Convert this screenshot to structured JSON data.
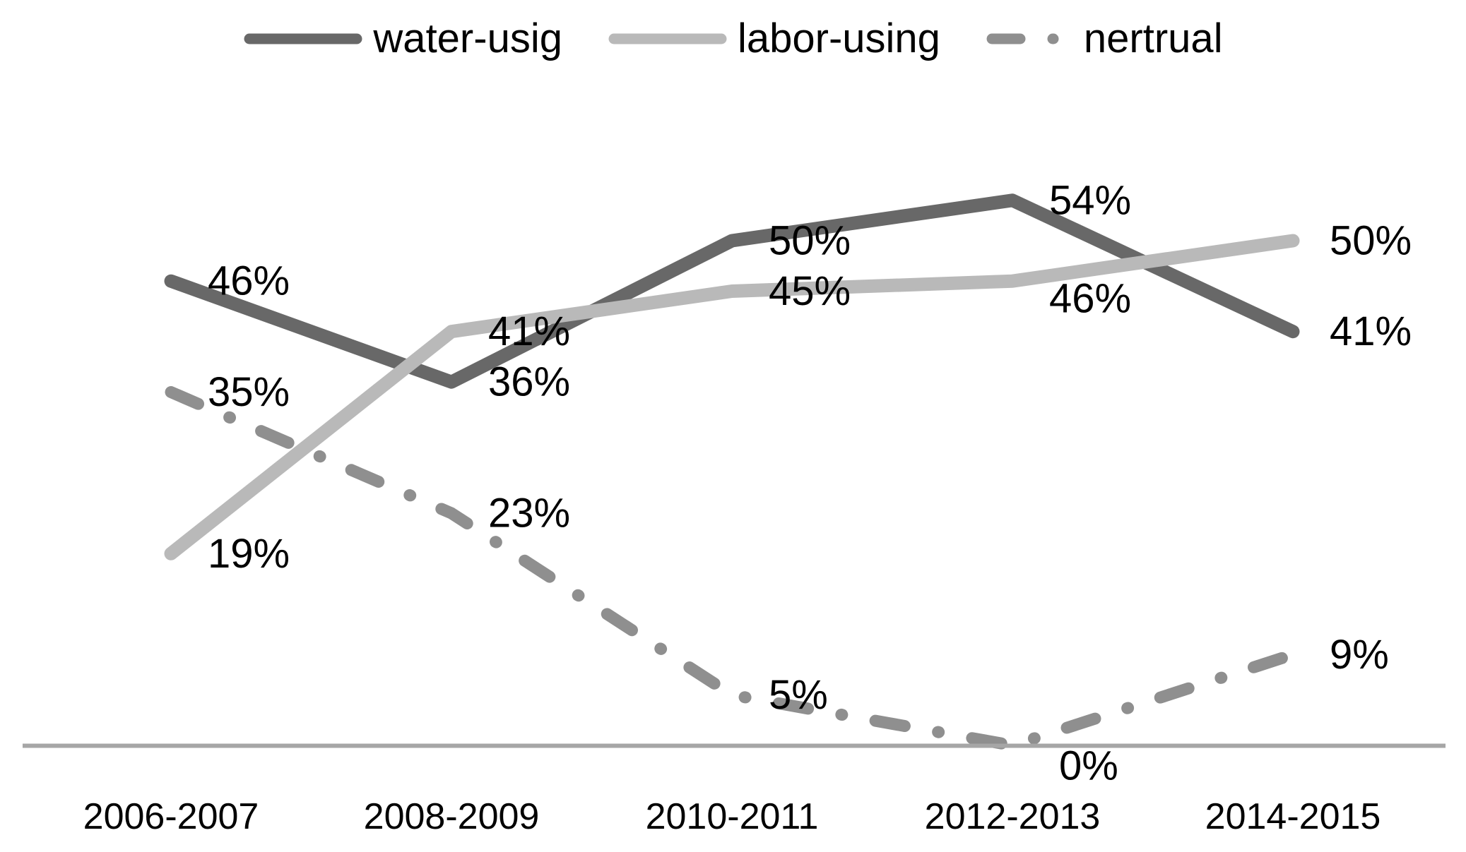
{
  "chart_data": {
    "type": "line",
    "title": "",
    "categories": [
      "2006-2007",
      "2008-2009",
      "2010-2011",
      "2012-2013",
      "2014-2015"
    ],
    "series": [
      {
        "name": "water-usig",
        "color": "#686868",
        "line_style": "solid",
        "values": [
          46,
          36,
          50,
          54,
          41
        ],
        "labels": [
          "46%",
          "36%",
          "50%",
          "54%",
          "41%"
        ]
      },
      {
        "name": "labor-using",
        "color": "#b9b9b9",
        "line_style": "solid",
        "values": [
          19,
          41,
          45,
          46,
          50
        ],
        "labels": [
          "19%",
          "41%",
          "45%",
          "46%",
          "50%"
        ]
      },
      {
        "name": "nertrual",
        "color": "#8f8f8f",
        "line_style": "dash-dot",
        "values": [
          35,
          23,
          5,
          0,
          9
        ],
        "labels": [
          "35%",
          "23%",
          "5%",
          "0%",
          "9%"
        ]
      }
    ],
    "ylim": [
      0,
      60
    ],
    "axis_color": "#a6a6a6",
    "label_color": "#000000",
    "legend_position": "top",
    "gridlines": false,
    "y_axis_visible": false
  }
}
